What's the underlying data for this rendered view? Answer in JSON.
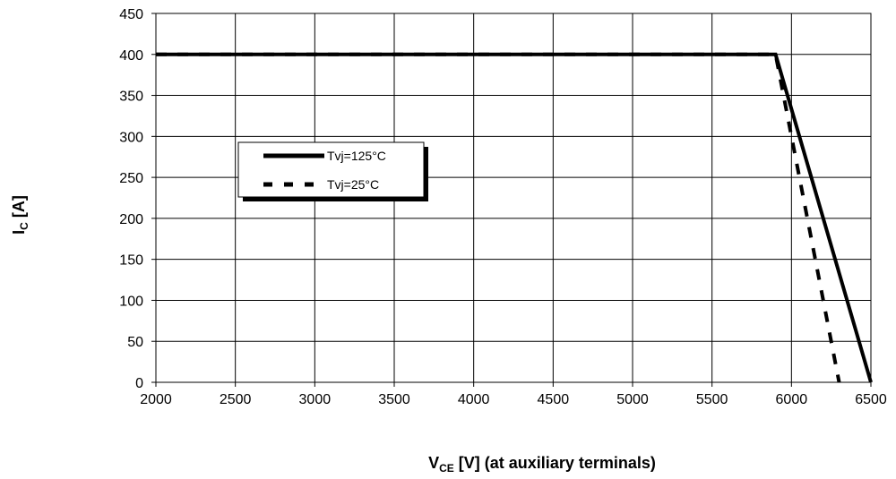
{
  "chart_data": {
    "type": "line",
    "title": "",
    "xlabel": {
      "main": "V",
      "sub": "CE",
      "rest": " [V] (at auxiliary terminals)"
    },
    "ylabel": {
      "main": "I",
      "sub": "C",
      "rest": " [A]"
    },
    "xlim": [
      2000,
      6500
    ],
    "ylim": [
      0,
      450
    ],
    "xticks": [
      2000,
      2500,
      3000,
      3500,
      4000,
      4500,
      5000,
      5500,
      6000,
      6500
    ],
    "yticks": [
      0,
      50,
      100,
      150,
      200,
      250,
      300,
      350,
      400,
      450
    ],
    "grid": true,
    "legend_position": "center-left",
    "series": [
      {
        "name": "Tvj=125°C",
        "style": "solid",
        "color": "#000000",
        "x": [
          2000,
          5900,
          6500
        ],
        "y": [
          400,
          400,
          0
        ]
      },
      {
        "name": "Tvj=25°C",
        "style": "dashed",
        "color": "#000000",
        "x": [
          2000,
          5900,
          6300
        ],
        "y": [
          400,
          400,
          0
        ]
      }
    ]
  }
}
